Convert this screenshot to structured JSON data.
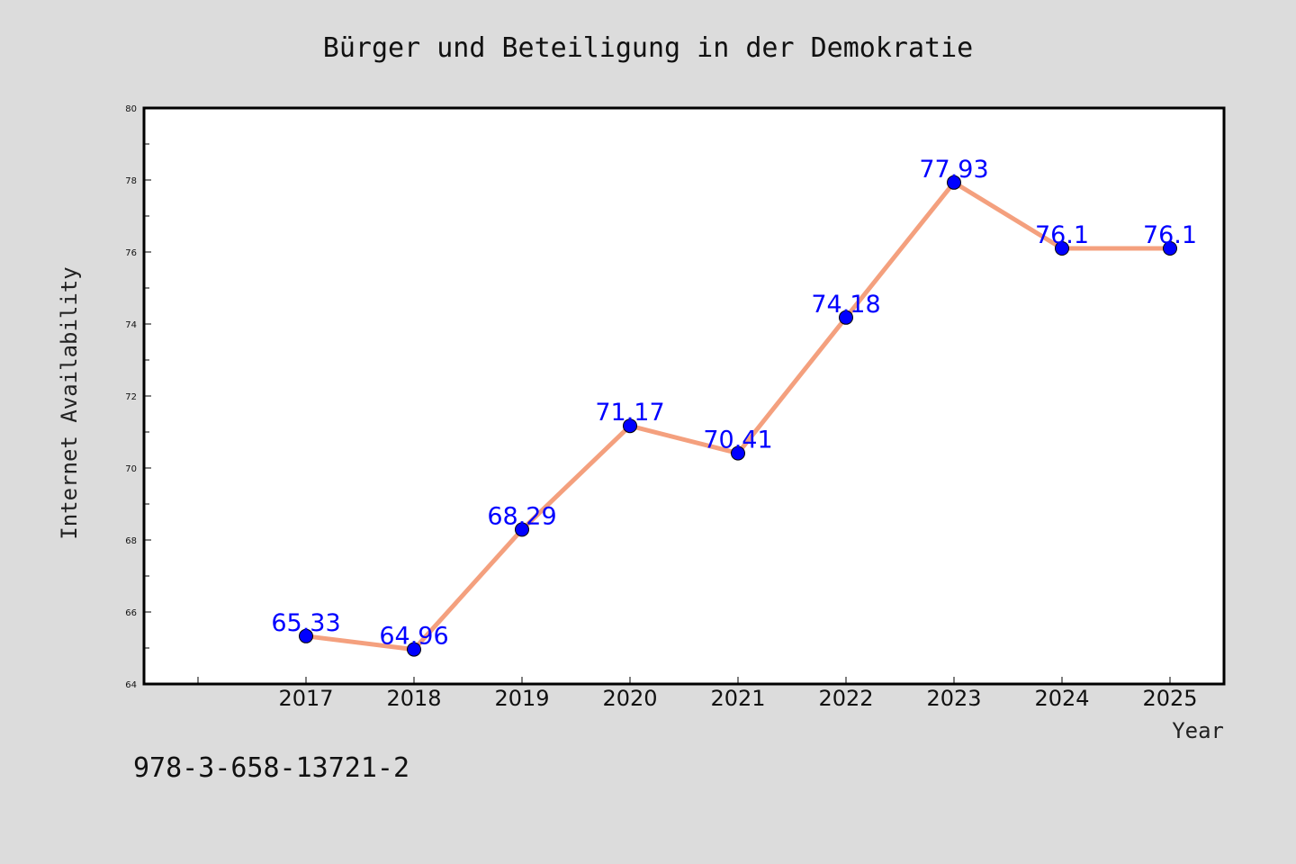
{
  "chart_data": {
    "type": "line",
    "title": "Bürger und Beteiligung in der Demokratie",
    "xlabel": "Year",
    "ylabel": "Internet Availability",
    "categories": [
      "2017",
      "2018",
      "2019",
      "2020",
      "2021",
      "2022",
      "2023",
      "2024",
      "2025"
    ],
    "series": [
      {
        "values": [
          65.33,
          64.96,
          68.29,
          71.17,
          70.41,
          74.18,
          77.93,
          76.1,
          76.1
        ],
        "line_color": "#f4a07e",
        "marker_color": "#0000ff"
      }
    ],
    "data_labels": [
      "65.33",
      "64.96",
      "68.29",
      "71.17",
      "70.41",
      "74.18",
      "77.93",
      "76.1",
      "76.1"
    ],
    "ylim": [
      64,
      80
    ],
    "yticks": [
      "64",
      "66",
      "68",
      "70",
      "72",
      "74",
      "76",
      "78",
      "80"
    ],
    "grid": false,
    "legend": "none"
  },
  "footer": {
    "isbn": "978-3-658-13721-2"
  },
  "colors": {
    "background": "#dcdcdc",
    "plot_area": "#ffffff",
    "label_color": "#0000ff"
  }
}
